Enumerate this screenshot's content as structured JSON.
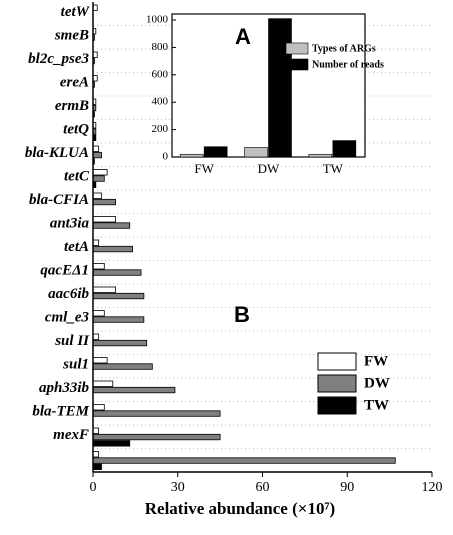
{
  "chart_data": [
    {
      "type": "hbar",
      "annotation": "B",
      "xlabel": "Relative abundance (×10⁷)",
      "categories": [
        "tetW",
        "smeB",
        "bl2c_pse3",
        "ereA",
        "ermB",
        "tetQ",
        "bla-KLUA",
        "tetC",
        "bla-CFIA",
        "ant3ia",
        "tetA",
        "qacEΔ1",
        "aac6ib",
        "cml_e3",
        "sul II",
        "sul1",
        "aph33ib",
        "bla-TEM",
        "mexF",
        null
      ],
      "series": [
        {
          "name": "FW",
          "color": "#ffffff",
          "values": [
            1.5,
            1,
            1.5,
            1.5,
            1,
            1,
            2,
            5,
            3,
            8,
            2,
            4,
            8,
            4,
            2,
            5,
            7,
            4,
            2,
            2
          ]
        },
        {
          "name": "DW",
          "color": "#808080",
          "values": [
            0,
            0.5,
            0.5,
            0.5,
            1,
            1,
            3,
            4,
            8,
            13,
            14,
            17,
            18,
            18,
            19,
            21,
            29,
            45,
            45,
            107
          ]
        },
        {
          "name": "TW",
          "color": "#000000",
          "values": [
            0,
            0,
            0,
            0,
            0.5,
            1,
            0.5,
            1,
            0,
            0,
            0,
            0,
            0,
            0,
            0,
            0,
            0,
            0,
            13,
            3
          ]
        }
      ],
      "xlim": [
        0,
        120
      ],
      "xticks": [
        0,
        30,
        60,
        90,
        120
      ],
      "legend": "lower right"
    },
    {
      "type": "bar",
      "annotation": "A",
      "categories": [
        "FW",
        "DW",
        "TW"
      ],
      "series": [
        {
          "name": "Types of ARGs",
          "color": "#c0c0c0",
          "values": [
            20,
            70,
            20
          ]
        },
        {
          "name": "Number of reads",
          "color": "#000000",
          "values": [
            75,
            1010,
            120
          ]
        }
      ],
      "ylim": [
        0,
        1000
      ],
      "yticks": [
        0,
        200,
        400,
        600,
        800,
        1000
      ],
      "legend": "upper right"
    }
  ]
}
